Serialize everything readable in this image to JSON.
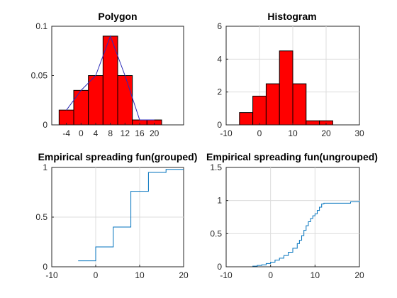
{
  "chart_data": [
    {
      "id": "polygon",
      "type": "bar",
      "title": "Polygon",
      "xlim": [
        -8,
        28
      ],
      "ylim": [
        0,
        0.1
      ],
      "xticks": [
        -4,
        0,
        4,
        8,
        12,
        16,
        20
      ],
      "yticks": [
        0,
        0.05,
        0.1
      ],
      "ytick_labels": [
        "0",
        "0.05",
        "0.1"
      ],
      "bins": [
        {
          "x0": -6,
          "x1": -2,
          "value": 0.015
        },
        {
          "x0": -2,
          "x1": 2,
          "value": 0.035
        },
        {
          "x0": 2,
          "x1": 6,
          "value": 0.05
        },
        {
          "x0": 6,
          "x1": 10,
          "value": 0.09
        },
        {
          "x0": 10,
          "x1": 14,
          "value": 0.05
        },
        {
          "x0": 14,
          "x1": 18,
          "value": 0.005
        },
        {
          "x0": 18,
          "x1": 22,
          "value": 0.005
        }
      ],
      "polygon": {
        "x": [
          -4,
          0,
          4,
          8,
          12,
          16,
          20
        ],
        "y": [
          0.015,
          0.035,
          0.05,
          0.09,
          0.05,
          0.005,
          0.005
        ]
      },
      "grid": false,
      "colors": {
        "bar": "#ff0000",
        "line": "#2b2bb8"
      }
    },
    {
      "id": "histogram",
      "type": "bar",
      "title": "Histogram",
      "xlim": [
        -10,
        30
      ],
      "ylim": [
        0,
        6
      ],
      "xticks": [
        -10,
        0,
        10,
        20,
        30
      ],
      "yticks": [
        0,
        2,
        4,
        6
      ],
      "bins": [
        {
          "x0": -6,
          "x1": -2,
          "value": 0.75
        },
        {
          "x0": -2,
          "x1": 2,
          "value": 1.75
        },
        {
          "x0": 2,
          "x1": 6,
          "value": 2.5
        },
        {
          "x0": 6,
          "x1": 10,
          "value": 4.5
        },
        {
          "x0": 10,
          "x1": 14,
          "value": 2.5
        },
        {
          "x0": 14,
          "x1": 18,
          "value": 0.25
        },
        {
          "x0": 18,
          "x1": 22,
          "value": 0.25
        }
      ],
      "grid": true,
      "colors": {
        "bar": "#ff0000"
      }
    },
    {
      "id": "ecdf-grouped",
      "type": "line",
      "title": "Empirical spreading fun(grouped)",
      "xlim": [
        -10,
        20
      ],
      "ylim": [
        0,
        1
      ],
      "xticks": [
        -10,
        0,
        10,
        20
      ],
      "yticks": [
        0,
        0.5,
        1
      ],
      "ytick_labels": [
        "0",
        "0.5",
        "1"
      ],
      "steps": {
        "x": [
          -4,
          0,
          0,
          4,
          4,
          8,
          8,
          12,
          12,
          16,
          16,
          20
        ],
        "y": [
          0.06,
          0.06,
          0.2,
          0.2,
          0.4,
          0.4,
          0.76,
          0.76,
          0.95,
          0.95,
          0.98,
          0.98
        ]
      },
      "grid": true,
      "colors": {
        "line": "#0072bd"
      }
    },
    {
      "id": "ecdf-ungrouped",
      "type": "line",
      "title": "Empirical spreading fun(ungrouped)",
      "xlim": [
        -10,
        20
      ],
      "ylim": [
        0,
        1.5
      ],
      "xticks": [
        -10,
        0,
        10,
        20
      ],
      "yticks": [
        0,
        0.5,
        1,
        1.5
      ],
      "ytick_labels": [
        "0",
        "0.5",
        "1",
        "1.5"
      ],
      "steps": {
        "x": [
          -5,
          -4,
          -3,
          -2,
          -1,
          0,
          1,
          2,
          3,
          4,
          5,
          6,
          6.5,
          7,
          7.5,
          8,
          8.5,
          9,
          9.5,
          10,
          10.5,
          11,
          11.5,
          12,
          14,
          16,
          18,
          20
        ],
        "y": [
          0,
          0.01,
          0.02,
          0.03,
          0.05,
          0.07,
          0.1,
          0.13,
          0.17,
          0.22,
          0.28,
          0.35,
          0.4,
          0.47,
          0.55,
          0.62,
          0.68,
          0.73,
          0.77,
          0.8,
          0.85,
          0.9,
          0.95,
          0.96,
          0.96,
          0.96,
          0.98,
          1.0
        ]
      },
      "grid": true,
      "colors": {
        "line": "#0072bd"
      }
    }
  ]
}
